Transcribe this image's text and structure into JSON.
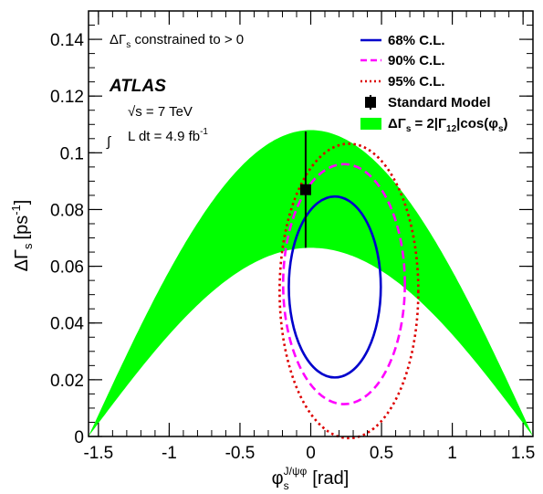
{
  "chart_data": {
    "type": "area",
    "xlabel": "φ_s^{J/ψφ} [rad]",
    "xlabel_main": "φ",
    "xlabel_sub": "s",
    "xlabel_sup": "J/ψφ",
    "xlabel_unit": "[rad]",
    "ylabel": "ΔΓ_s [ps^-1]",
    "ylabel_main": "ΔΓ",
    "ylabel_sub": "s",
    "ylabel_unit": "[ps",
    "ylabel_exp": "-1",
    "ylabel_close": "]",
    "xlim": [
      -1.57,
      1.57
    ],
    "ylim": [
      0,
      0.15
    ],
    "x_ticks": [
      -1.5,
      -1,
      -0.5,
      0,
      0.5,
      1,
      1.5
    ],
    "x_tick_labels": [
      "-1.5",
      "-1",
      "-0.5",
      "0",
      "0.5",
      "1",
      "1.5"
    ],
    "y_ticks": [
      0,
      0.02,
      0.04,
      0.06,
      0.08,
      0.1,
      0.12,
      0.14
    ],
    "y_tick_labels": [
      "0",
      "0.02",
      "0.04",
      "0.06",
      "0.08",
      "0.1",
      "0.12",
      "0.14"
    ],
    "annotations": {
      "constraint": "ΔΓ_s constrained to > 0",
      "constraint_main": "ΔΓ",
      "constraint_sub": "s",
      "constraint_rest": " constrained to > 0",
      "experiment": "ATLAS",
      "energy": "√s = 7 TeV",
      "energy_sqrt": "√",
      "energy_rest": "s = 7 TeV",
      "integral_sign": "∫",
      "lumi": "L dt = 4.9 fb^-1",
      "lumi_base": "L dt = 4.9 fb",
      "lumi_exp": "-1"
    },
    "series": [
      {
        "name": "68% C.L.",
        "kind": "contour",
        "style": "solid",
        "color": "#0000cc",
        "center": [
          0.17,
          0.0527
        ],
        "rx": 0.325,
        "ry": 0.0319
      },
      {
        "name": "90% C.L.",
        "kind": "contour",
        "style": "dashed",
        "color": "#ff00ff",
        "center": [
          0.235,
          0.0537
        ],
        "rx": 0.43,
        "ry": 0.0423
      },
      {
        "name": "95% C.L.",
        "kind": "contour",
        "style": "dotted",
        "color": "#dd0000",
        "center": [
          0.27,
          0.0513
        ],
        "rx": 0.49,
        "ry": 0.0519
      },
      {
        "name": "Standard Model",
        "kind": "point",
        "color": "#000000",
        "x": -0.036,
        "y": 0.087,
        "y_err_low": 0.0205,
        "y_err_high": 0.0205
      },
      {
        "name": "ΔΓ_s = 2|Γ_12|cos(φ_s)",
        "kind": "band",
        "color": "#00ff00",
        "amplitude_lower": 0.0665,
        "amplitude_upper": 0.108
      }
    ],
    "legend": {
      "placement": "top-right",
      "entries": [
        {
          "label": "68% C.L."
        },
        {
          "label": "90% C.L."
        },
        {
          "label": "95% C.L."
        },
        {
          "label": "Standard Model"
        },
        {
          "label": "ΔΓ_s = 2|Γ_12|cos(φ_s)",
          "main": "ΔΓ",
          "sub1": "s",
          "mid": " = 2|Γ",
          "sub2": "12",
          "mid2": "|cos(φ",
          "sub3": "s",
          "end": ")"
        }
      ]
    },
    "grid": false
  }
}
